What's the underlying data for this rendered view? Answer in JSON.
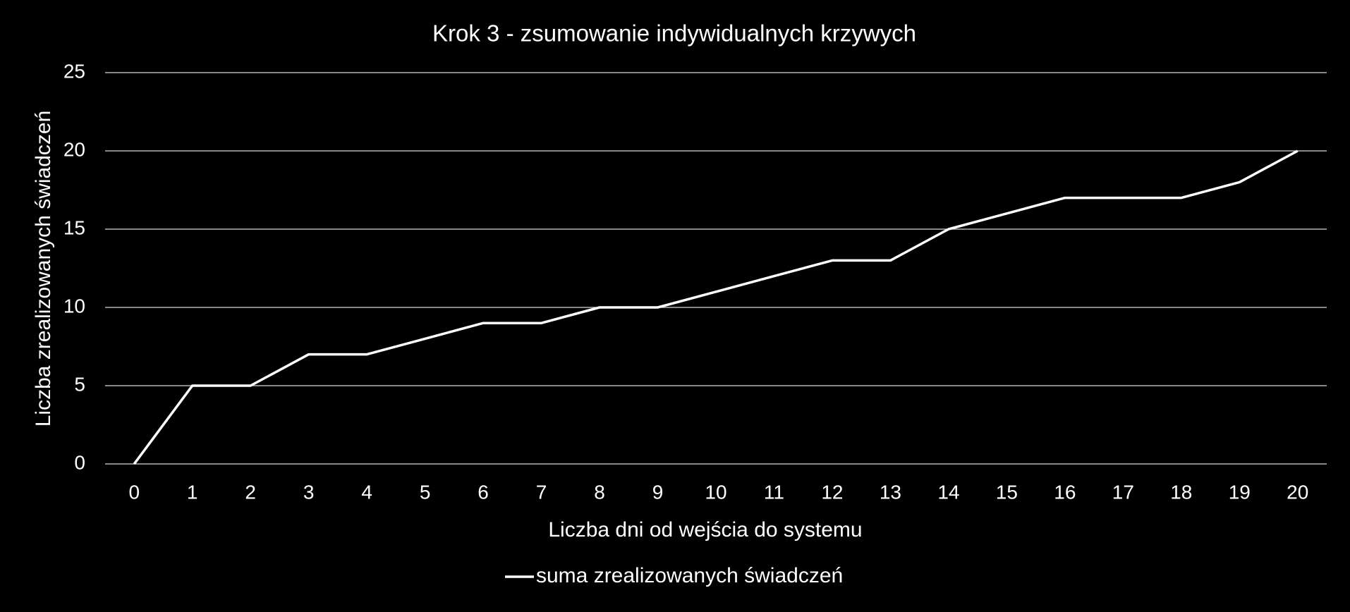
{
  "chart_data": {
    "type": "line",
    "title": "Krok 3 - zsumowanie indywidualnych krzywych",
    "x_label": "Liczba dni od wejścia do systemu",
    "y_label": "Liczba zrealizowanych świadczeń",
    "categories": [
      "0",
      "1",
      "2",
      "3",
      "4",
      "5",
      "6",
      "7",
      "8",
      "9",
      "10",
      "11",
      "12",
      "13",
      "14",
      "15",
      "16",
      "17",
      "18",
      "19",
      "20"
    ],
    "series": [
      {
        "name": "suma zrealizowanych świadczeń",
        "color": "#ffffff",
        "values": [
          0,
          5,
          5,
          7,
          7,
          8,
          9,
          9,
          10,
          10,
          11,
          12,
          13,
          13,
          15,
          16,
          17,
          17,
          17,
          18,
          20
        ]
      }
    ],
    "ylim": [
      0,
      25
    ],
    "yticks": [
      0,
      5,
      10,
      15,
      20,
      25
    ],
    "grid": true,
    "legend": "bottom"
  }
}
